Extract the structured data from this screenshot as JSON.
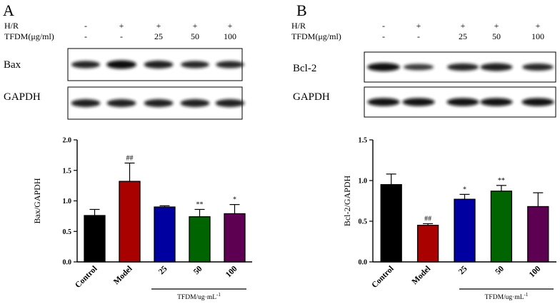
{
  "panels": [
    {
      "letter": "A",
      "treatment_rows": [
        {
          "label": "H/R",
          "values": [
            "-",
            "+",
            "+",
            "+",
            "+"
          ]
        },
        {
          "label": "TFDM(μg/ml)",
          "values": [
            "-",
            "-",
            "25",
            "50",
            "100"
          ]
        }
      ],
      "blots": [
        {
          "label": "Bax",
          "band_intensity": [
            0.75,
            1.0,
            0.85,
            0.72,
            0.7
          ]
        },
        {
          "label": "GAPDH",
          "band_intensity": [
            0.85,
            0.85,
            0.85,
            0.85,
            0.85
          ]
        }
      ]
    },
    {
      "letter": "B",
      "treatment_rows": [
        {
          "label": "H/R",
          "values": [
            "-",
            "+",
            "+",
            "+",
            "+"
          ]
        },
        {
          "label": "TFDM(μg/ml)",
          "values": [
            "-",
            "-",
            "25",
            "50",
            "100"
          ]
        }
      ],
      "blots": [
        {
          "label": "Bcl-2",
          "band_intensity": [
            0.95,
            0.55,
            0.75,
            0.85,
            0.7
          ]
        },
        {
          "label": "GAPDH",
          "band_intensity": [
            0.9,
            0.9,
            0.9,
            0.9,
            0.9
          ]
        }
      ]
    }
  ],
  "chart_data": [
    {
      "type": "bar",
      "title": "",
      "xlabel": "",
      "ylabel": "Bax/GAPDH",
      "ylim": [
        0,
        2.0
      ],
      "yticks": [
        "0.0",
        "0.5",
        "1.0",
        "1.5",
        "2.0"
      ],
      "categories": [
        "Control",
        "Model",
        "25",
        "50",
        "100"
      ],
      "values": [
        0.76,
        1.32,
        0.9,
        0.74,
        0.79
      ],
      "errors": [
        0.1,
        0.3,
        0.02,
        0.12,
        0.15
      ],
      "colors": [
        "#000000",
        "#a90000",
        "#0000a0",
        "#006400",
        "#5e0052"
      ],
      "annotations": [
        "",
        "##",
        "",
        "**",
        "*"
      ],
      "group_label": "TFDM/ug·mL",
      "group_label_sup": "-1"
    },
    {
      "type": "bar",
      "title": "",
      "xlabel": "",
      "ylabel": "Bcl-2/GAPDH",
      "ylim": [
        0,
        1.5
      ],
      "yticks": [
        "0.0",
        "0.5",
        "1.0",
        "1.5"
      ],
      "categories": [
        "Control",
        "Model",
        "25",
        "50",
        "100"
      ],
      "values": [
        0.95,
        0.45,
        0.77,
        0.87,
        0.68
      ],
      "errors": [
        0.13,
        0.02,
        0.06,
        0.07,
        0.17
      ],
      "colors": [
        "#000000",
        "#a90000",
        "#0000a0",
        "#006400",
        "#5e0052"
      ],
      "annotations": [
        "",
        "##",
        "*",
        "**",
        ""
      ],
      "group_label": "TFDM/ug·mL",
      "group_label_sup": "-1"
    }
  ]
}
